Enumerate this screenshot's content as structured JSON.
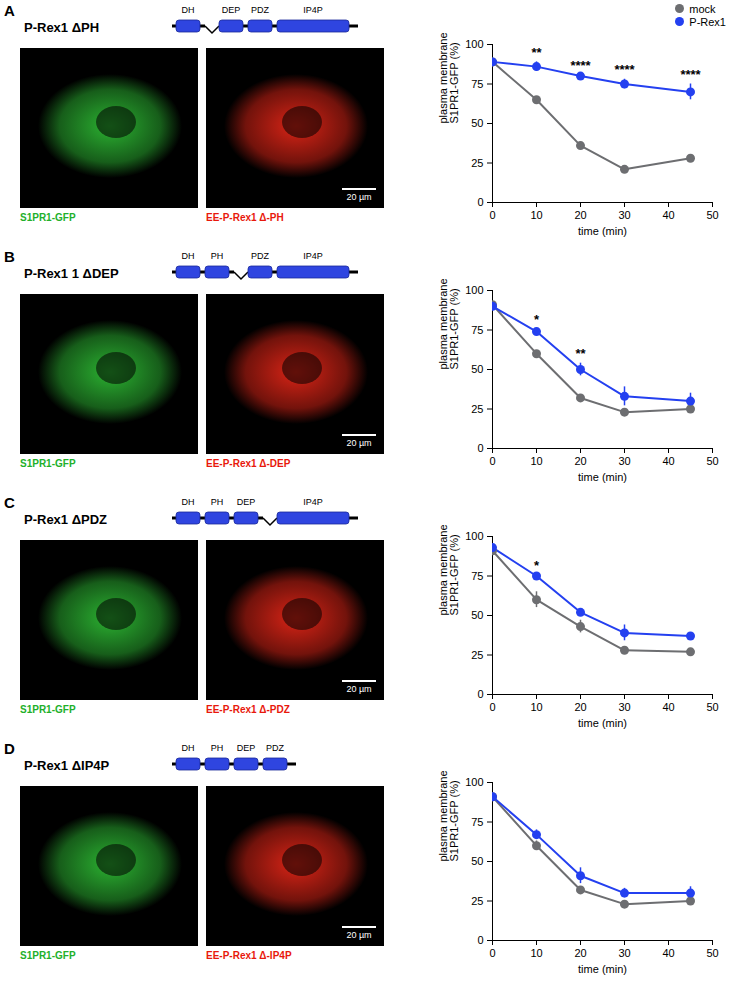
{
  "chart_data": [
    {
      "type": "line",
      "panel": "A",
      "title": "P-Rex1 ΔPH",
      "domains": [
        "DH",
        "DEP",
        "PDZ",
        "IP4P"
      ],
      "deletion": 1,
      "image_labels": [
        "S1PR1-GFP",
        "EE-P-Rex1 Δ-PH"
      ],
      "scale_bar": "20 µm",
      "legend": "top-right",
      "x": [
        0,
        10,
        20,
        30,
        45
      ],
      "xlim": [
        0,
        50
      ],
      "xticks": [
        0,
        10,
        20,
        30,
        40,
        50
      ],
      "xlabel": "time (min)",
      "ylim": [
        0,
        100
      ],
      "yticks": [
        0,
        25,
        50,
        75,
        100
      ],
      "ylabel": "plasma membrane S1PR1-GFP (%)",
      "series": [
        {
          "name": "mock",
          "color": "#6d6e71",
          "values": [
            89,
            65,
            36,
            21,
            28
          ],
          "errors": [
            1,
            1,
            2,
            1,
            1
          ]
        },
        {
          "name": "P-Rex1",
          "color": "#2440f0",
          "values": [
            89,
            86,
            80,
            75,
            70
          ],
          "errors": [
            2,
            3,
            1,
            3,
            5
          ]
        }
      ],
      "annotations": [
        {
          "x": 10,
          "text": "**"
        },
        {
          "x": 20,
          "text": "****"
        },
        {
          "x": 30,
          "text": "****"
        },
        {
          "x": 45,
          "text": "****"
        }
      ]
    },
    {
      "type": "line",
      "panel": "B",
      "title": "P-Rex1 1 ΔDEP",
      "domains": [
        "DH",
        "PH",
        "PDZ",
        "IP4P"
      ],
      "deletion": 2,
      "image_labels": [
        "S1PR1-GFP",
        "EE-P-Rex1 Δ-DEP"
      ],
      "scale_bar": "20 µm",
      "x": [
        0,
        10,
        20,
        30,
        45
      ],
      "xlim": [
        0,
        50
      ],
      "xticks": [
        0,
        10,
        20,
        30,
        40,
        50
      ],
      "xlabel": "time (min)",
      "ylim": [
        0,
        100
      ],
      "yticks": [
        0,
        25,
        50,
        75,
        100
      ],
      "ylabel": "plasma membrane S1PR1-GFP (%)",
      "series": [
        {
          "name": "mock",
          "color": "#6d6e71",
          "values": [
            91,
            60,
            32,
            23,
            25
          ],
          "errors": [
            1,
            2,
            1,
            2,
            2
          ]
        },
        {
          "name": "P-Rex1",
          "color": "#2440f0",
          "values": [
            90,
            74,
            50,
            33,
            30
          ],
          "errors": [
            1,
            2,
            4,
            6,
            5
          ]
        }
      ],
      "annotations": [
        {
          "x": 10,
          "text": "*"
        },
        {
          "x": 20,
          "text": "**"
        }
      ]
    },
    {
      "type": "line",
      "panel": "C",
      "title": "P-Rex1 ΔPDZ",
      "domains": [
        "DH",
        "PH",
        "DEP",
        "IP4P"
      ],
      "deletion": 3,
      "image_labels": [
        "S1PR1-GFP",
        "EE-P-Rex1 Δ-PDZ"
      ],
      "scale_bar": "20 µm",
      "x": [
        0,
        10,
        20,
        30,
        45
      ],
      "xlim": [
        0,
        50
      ],
      "xticks": [
        0,
        10,
        20,
        30,
        40,
        50
      ],
      "xlabel": "time (min)",
      "ylim": [
        0,
        100
      ],
      "yticks": [
        0,
        25,
        50,
        75,
        100
      ],
      "ylabel": "plasma membrane S1PR1-GFP (%)",
      "series": [
        {
          "name": "mock",
          "color": "#6d6e71",
          "values": [
            91,
            60,
            43,
            28,
            27
          ],
          "errors": [
            1,
            5,
            4,
            1,
            1
          ]
        },
        {
          "name": "P-Rex1",
          "color": "#2440f0",
          "values": [
            93,
            75,
            52,
            39,
            37
          ],
          "errors": [
            1,
            1,
            1,
            5,
            1
          ]
        }
      ],
      "annotations": [
        {
          "x": 10,
          "text": "*"
        }
      ]
    },
    {
      "type": "line",
      "panel": "D",
      "title": "P-Rex1 ΔIP4P",
      "domains": [
        "DH",
        "PH",
        "DEP",
        "PDZ"
      ],
      "deletion": null,
      "image_labels": [
        "S1PR1-GFP",
        "EE-P-Rex1 Δ-IP4P"
      ],
      "scale_bar": "20 µm",
      "x": [
        0,
        10,
        20,
        30,
        45
      ],
      "xlim": [
        0,
        50
      ],
      "xticks": [
        0,
        10,
        20,
        30,
        40,
        50
      ],
      "xlabel": "time (min)",
      "ylim": [
        0,
        100
      ],
      "yticks": [
        0,
        25,
        50,
        75,
        100
      ],
      "ylabel": "plasma membrane S1PR1-GFP (%)",
      "series": [
        {
          "name": "mock",
          "color": "#6d6e71",
          "values": [
            91,
            60,
            32,
            23,
            25
          ],
          "errors": [
            1,
            3,
            1,
            2,
            2
          ]
        },
        {
          "name": "P-Rex1",
          "color": "#2440f0",
          "values": [
            91,
            67,
            41,
            30,
            30
          ],
          "errors": [
            1,
            3,
            5,
            3,
            4
          ]
        }
      ],
      "annotations": []
    }
  ]
}
